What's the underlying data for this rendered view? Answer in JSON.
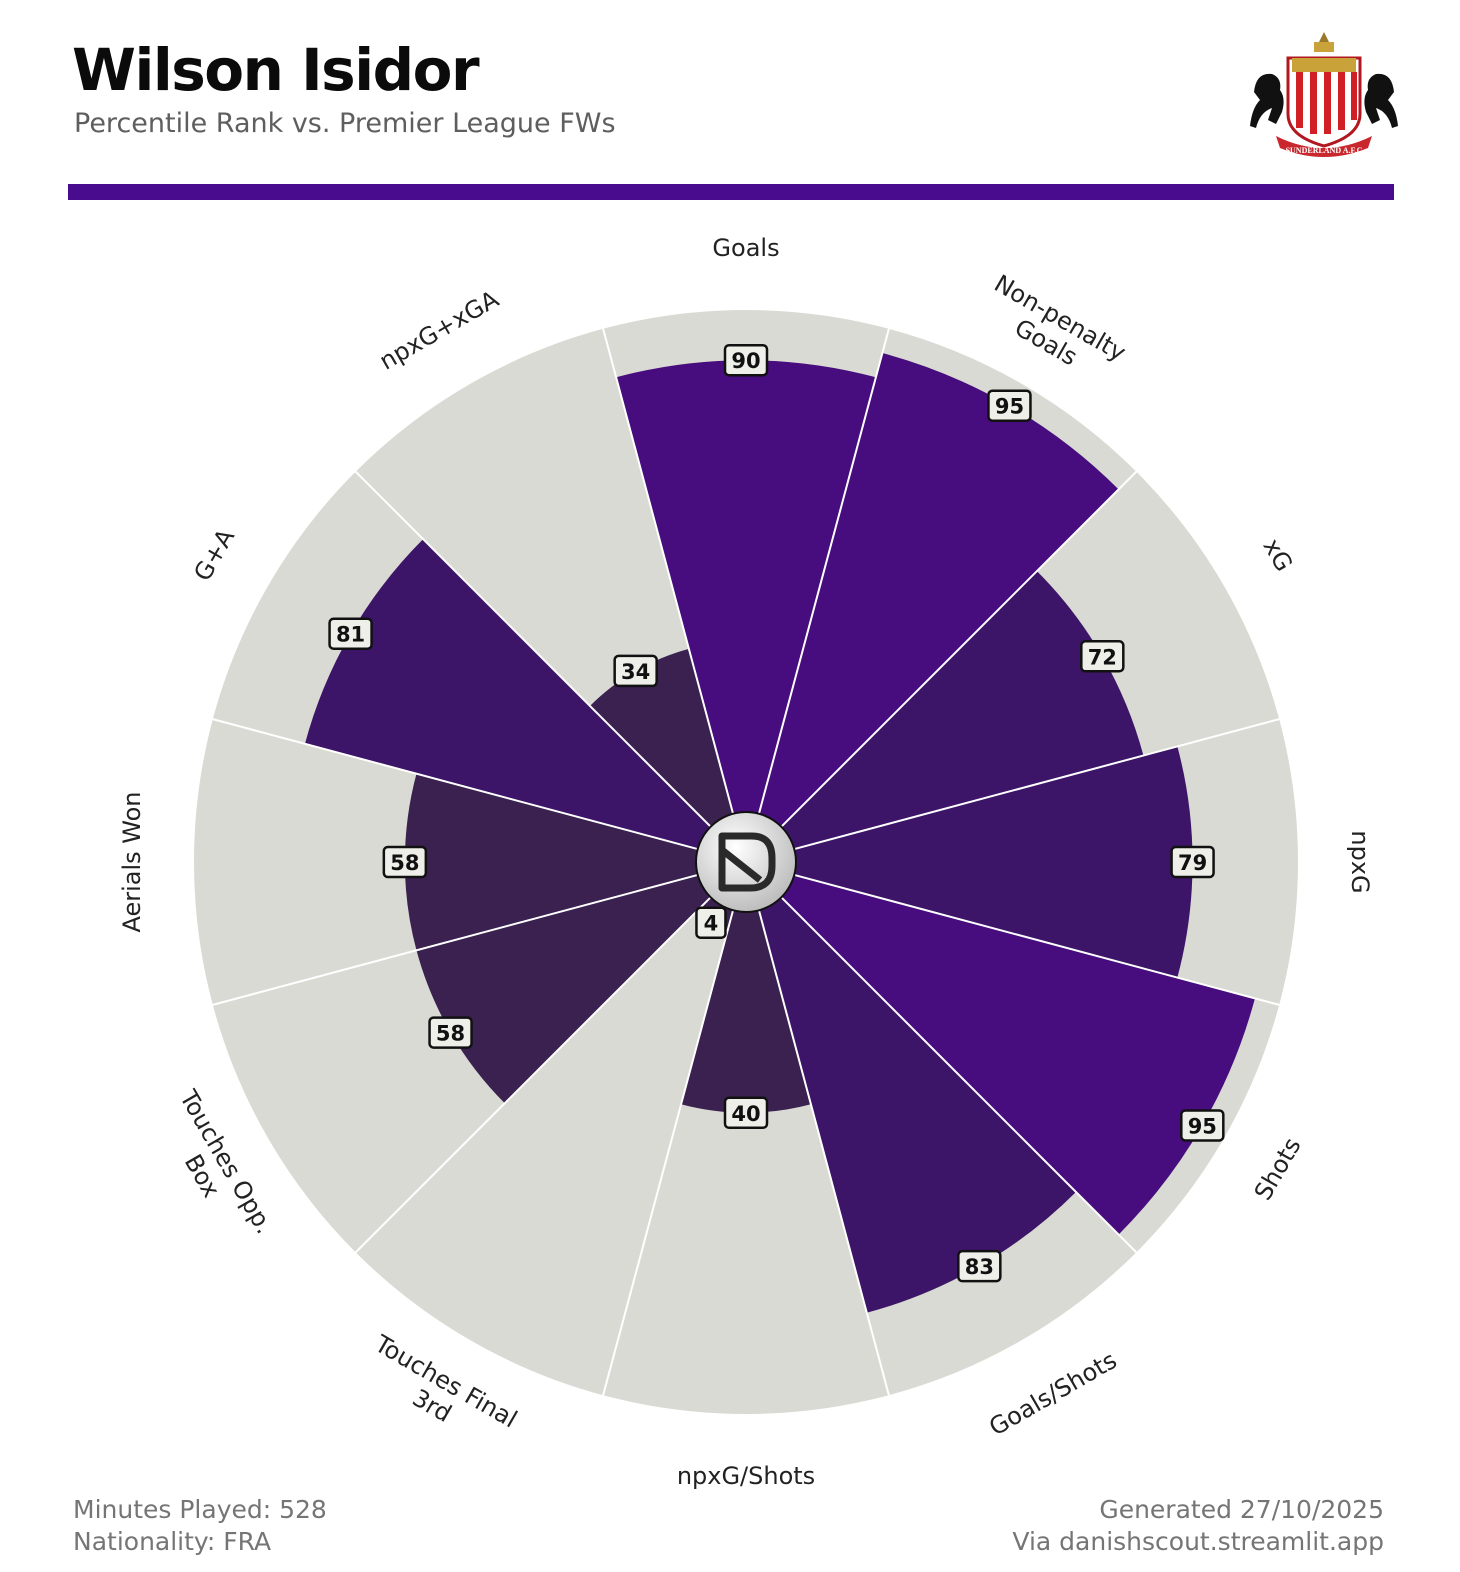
{
  "header": {
    "title": "Wilson Isidor",
    "subtitle": "Percentile Rank vs. Premier League FWs"
  },
  "crest": {
    "banner_text": "SUNDERLAND A.F.C"
  },
  "colors": {
    "accent": "#4a0c8f",
    "bar_high": "#470c7d",
    "bar_mid": "#3d1568",
    "bar_low": "#3a2150",
    "track": "#d9dad3",
    "label_box_fill": "#efefe9",
    "text": "#111111",
    "muted": "#757575"
  },
  "chart_data": {
    "type": "polar-bar",
    "title": "Wilson Isidor",
    "subtitle": "Percentile Rank vs. Premier League FWs",
    "rlim": [
      0,
      100
    ],
    "categories": [
      "Goals",
      "Non-penalty Goals",
      "xG",
      "npxG",
      "Shots",
      "Goals/Shots",
      "npxG/Shots",
      "Touches Final 3rd",
      "Touches Opp. Box",
      "Aerials Won",
      "G+A",
      "npxG+xGA"
    ],
    "values": [
      90,
      95,
      72,
      79,
      95,
      83,
      40,
      4,
      58,
      58,
      81,
      34
    ]
  },
  "footer": {
    "minutes": "Minutes Played: 528",
    "nationality": "Nationality: FRA",
    "generated": "Generated 27/10/2025",
    "via": "Via danishscout.streamlit.app"
  }
}
